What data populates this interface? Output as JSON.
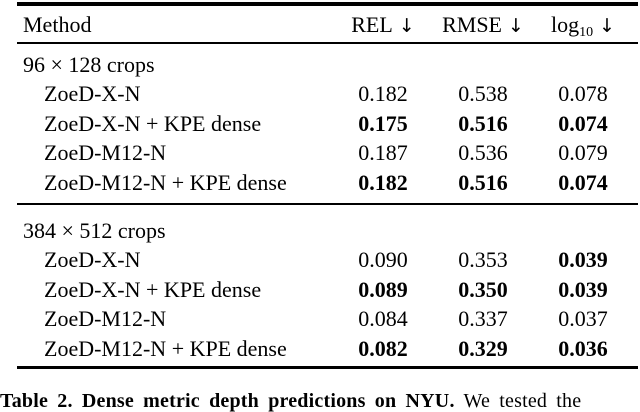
{
  "colors": {
    "background": "#ffffff",
    "text": "#000000",
    "rule": "#000000"
  },
  "table": {
    "header": {
      "method_label": "Method",
      "arrow": "↓",
      "cols": [
        {
          "label": "REL",
          "sub": ""
        },
        {
          "label": "RMSE",
          "sub": ""
        },
        {
          "label": "log",
          "sub": "10"
        }
      ]
    },
    "sections": [
      {
        "title": "96 × 128 crops",
        "rows": [
          {
            "method": "ZoeD-X-N",
            "values": [
              {
                "text": "0.182",
                "bold": false
              },
              {
                "text": "0.538",
                "bold": false
              },
              {
                "text": "0.078",
                "bold": false
              }
            ]
          },
          {
            "method": "ZoeD-X-N + KPE dense",
            "values": [
              {
                "text": "0.175",
                "bold": true
              },
              {
                "text": "0.516",
                "bold": true
              },
              {
                "text": "0.074",
                "bold": true
              }
            ]
          },
          {
            "method": "ZoeD-M12-N",
            "values": [
              {
                "text": "0.187",
                "bold": false
              },
              {
                "text": "0.536",
                "bold": false
              },
              {
                "text": "0.079",
                "bold": false
              }
            ]
          },
          {
            "method": "ZoeD-M12-N + KPE dense",
            "values": [
              {
                "text": "0.182",
                "bold": true
              },
              {
                "text": "0.516",
                "bold": true
              },
              {
                "text": "0.074",
                "bold": true
              }
            ]
          }
        ]
      },
      {
        "title": "384 × 512 crops",
        "rows": [
          {
            "method": "ZoeD-X-N",
            "values": [
              {
                "text": "0.090",
                "bold": false
              },
              {
                "text": "0.353",
                "bold": false
              },
              {
                "text": "0.039",
                "bold": true
              }
            ]
          },
          {
            "method": "ZoeD-X-N + KPE dense",
            "values": [
              {
                "text": "0.089",
                "bold": true
              },
              {
                "text": "0.350",
                "bold": true
              },
              {
                "text": "0.039",
                "bold": true
              }
            ]
          },
          {
            "method": "ZoeD-M12-N",
            "values": [
              {
                "text": "0.084",
                "bold": false
              },
              {
                "text": "0.337",
                "bold": false
              },
              {
                "text": "0.037",
                "bold": false
              }
            ]
          },
          {
            "method": "ZoeD-M12-N + KPE dense",
            "values": [
              {
                "text": "0.082",
                "bold": true
              },
              {
                "text": "0.329",
                "bold": true
              },
              {
                "text": "0.036",
                "bold": true
              }
            ]
          }
        ]
      }
    ]
  },
  "caption": {
    "label": "Table 2.",
    "title": "Dense metric depth predictions on NYU.",
    "trailing_text": "We tested the"
  }
}
